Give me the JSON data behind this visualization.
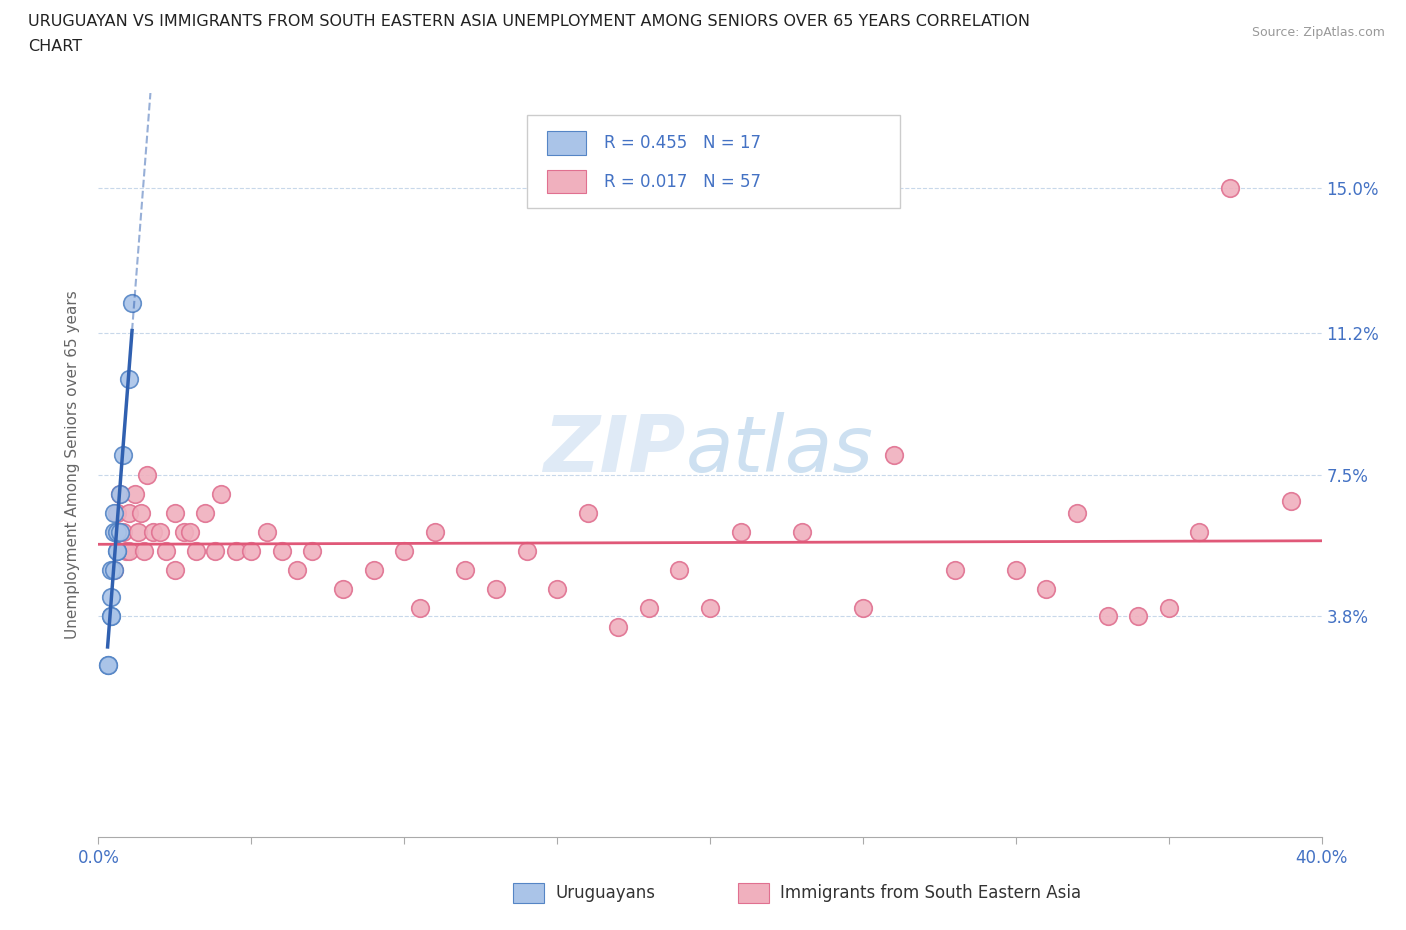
{
  "title_line1": "URUGUAYAN VS IMMIGRANTS FROM SOUTH EASTERN ASIA UNEMPLOYMENT AMONG SENIORS OVER 65 YEARS CORRELATION",
  "title_line2": "CHART",
  "source": "Source: ZipAtlas.com",
  "ylabel": "Unemployment Among Seniors over 65 years",
  "ytick_vals": [
    0.0,
    0.038,
    0.075,
    0.112,
    0.15
  ],
  "ytick_labels": [
    "",
    "3.8%",
    "7.5%",
    "11.2%",
    "15.0%"
  ],
  "xtick_vals": [
    0.0,
    0.05,
    0.1,
    0.15,
    0.2,
    0.25,
    0.3,
    0.35,
    0.4
  ],
  "legend_bottom1": "Uruguayans",
  "legend_bottom2": "Immigrants from South Eastern Asia",
  "blue_scatter_color": "#aac4e8",
  "blue_edge_color": "#5585c5",
  "blue_line_color": "#3060b0",
  "pink_scatter_color": "#f0b0be",
  "pink_edge_color": "#e07090",
  "pink_line_color": "#e05878",
  "xlim": [
    0.0,
    0.4
  ],
  "ylim": [
    -0.02,
    0.175
  ],
  "uruguayan_x": [
    0.003,
    0.003,
    0.004,
    0.004,
    0.004,
    0.004,
    0.005,
    0.005,
    0.005,
    0.006,
    0.006,
    0.006,
    0.007,
    0.007,
    0.008,
    0.01,
    0.011
  ],
  "uruguayan_y": [
    0.025,
    0.025,
    0.038,
    0.038,
    0.043,
    0.05,
    0.05,
    0.06,
    0.065,
    0.055,
    0.055,
    0.06,
    0.06,
    0.07,
    0.08,
    0.1,
    0.12
  ],
  "sea_x": [
    0.005,
    0.006,
    0.007,
    0.008,
    0.009,
    0.01,
    0.01,
    0.012,
    0.013,
    0.014,
    0.015,
    0.016,
    0.018,
    0.02,
    0.022,
    0.025,
    0.025,
    0.028,
    0.03,
    0.032,
    0.035,
    0.038,
    0.04,
    0.045,
    0.05,
    0.055,
    0.06,
    0.065,
    0.07,
    0.08,
    0.09,
    0.1,
    0.105,
    0.11,
    0.12,
    0.13,
    0.14,
    0.15,
    0.16,
    0.17,
    0.18,
    0.19,
    0.2,
    0.21,
    0.23,
    0.25,
    0.26,
    0.28,
    0.3,
    0.31,
    0.32,
    0.33,
    0.34,
    0.35,
    0.36,
    0.37,
    0.39
  ],
  "sea_y": [
    0.05,
    0.065,
    0.07,
    0.06,
    0.055,
    0.065,
    0.055,
    0.07,
    0.06,
    0.065,
    0.055,
    0.075,
    0.06,
    0.06,
    0.055,
    0.065,
    0.05,
    0.06,
    0.06,
    0.055,
    0.065,
    0.055,
    0.07,
    0.055,
    0.055,
    0.06,
    0.055,
    0.05,
    0.055,
    0.045,
    0.05,
    0.055,
    0.04,
    0.06,
    0.05,
    0.045,
    0.055,
    0.045,
    0.065,
    0.035,
    0.04,
    0.05,
    0.04,
    0.06,
    0.06,
    0.04,
    0.08,
    0.05,
    0.05,
    0.045,
    0.065,
    0.038,
    0.038,
    0.04,
    0.06,
    0.15,
    0.068
  ]
}
